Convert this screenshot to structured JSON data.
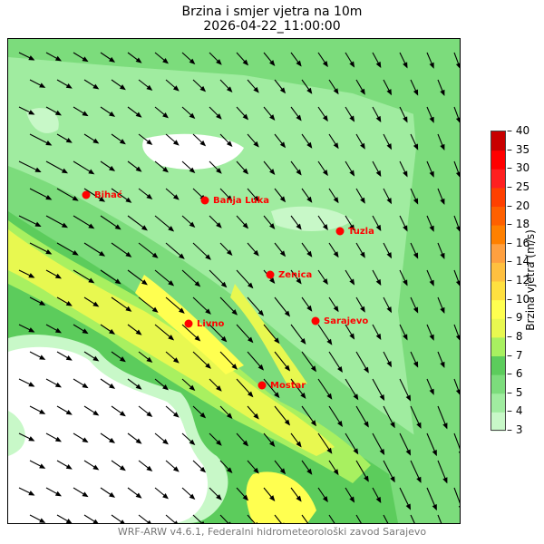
{
  "title": "Brzina i smjer vjetra na 10m",
  "subtitle": "2026-04-22_11:00:00",
  "footer": "WRF-ARW v4.6.1, Federalni hidrometeorološki zavod Sarajevo",
  "colorbar": {
    "label": "Brzina vjetra (m/s)",
    "ticks": [
      "3",
      "4",
      "5",
      "6",
      "7",
      "8",
      "9",
      "10",
      "12",
      "14",
      "16",
      "18",
      "20",
      "25",
      "30",
      "35",
      "40"
    ],
    "colors": [
      "#c8f8c8",
      "#a0eca0",
      "#7cdc7c",
      "#5ccc5c",
      "#a8f060",
      "#e8f850",
      "#ffff50",
      "#ffe040",
      "#ffc040",
      "#ffa040",
      "#ff8000",
      "#ff6000",
      "#ff4000",
      "#ff2020",
      "#ff0000",
      "#c80000"
    ]
  },
  "cities": [
    "Bihać",
    "Banja Luka",
    "Tuzla",
    "Zenica",
    "Sarajevo",
    "Livno",
    "Mostar"
  ],
  "marker_color": "#ff0000"
}
